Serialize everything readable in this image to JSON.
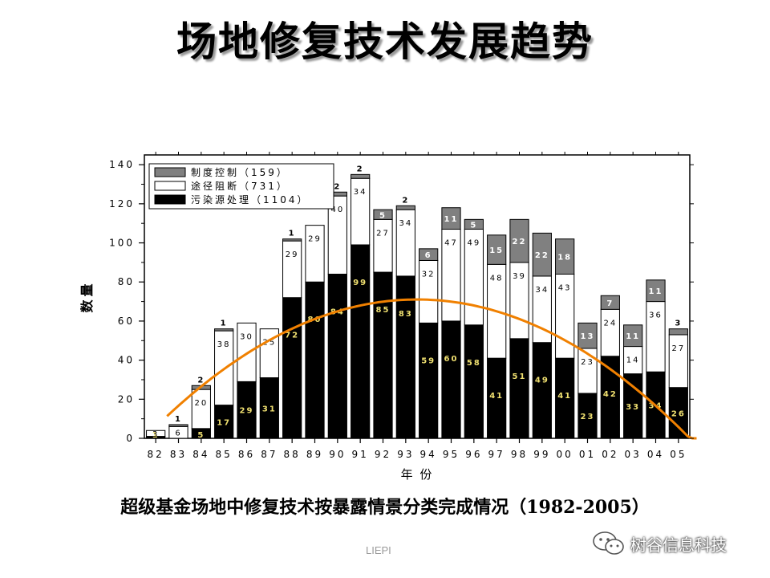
{
  "page": {
    "title": "场地修复技术发展趋势"
  },
  "caption": "超级基金场地中修复技术按暴露情景分类完成情况（1982-2005）",
  "footer_mark": "LIEPI",
  "watermark": {
    "text": "树谷信息科技",
    "icon": "wechat-icon"
  },
  "chart_data": {
    "type": "bar",
    "stacked": true,
    "xlabel": "年 份",
    "ylabel": "数量",
    "ylim": [
      0,
      145
    ],
    "yticks": [
      0,
      20,
      40,
      60,
      80,
      100,
      120,
      140
    ],
    "categories": [
      "82",
      "83",
      "84",
      "85",
      "86",
      "87",
      "88",
      "89",
      "90",
      "91",
      "92",
      "93",
      "94",
      "95",
      "96",
      "97",
      "98",
      "99",
      "00",
      "01",
      "02",
      "03",
      "04",
      "05"
    ],
    "legend_position": "top-left",
    "series": [
      {
        "name": "污染源处理（1104）",
        "color": "#000000",
        "label_color": "#f0e070",
        "values": [
          1,
          0,
          5,
          17,
          29,
          31,
          72,
          80,
          84,
          99,
          85,
          83,
          59,
          60,
          58,
          41,
          51,
          49,
          41,
          23,
          42,
          33,
          34,
          26
        ],
        "labels": [
          "1",
          "",
          "5",
          "17",
          "29",
          "31",
          "72",
          "80",
          "84",
          "99",
          "85",
          "83",
          "59",
          "60",
          "58",
          "41",
          "51",
          "49",
          "41",
          "23",
          "42",
          "33",
          "34",
          "26"
        ]
      },
      {
        "name": "途径阻断（731）",
        "color": "#ffffff",
        "label_color": "#000000",
        "values": [
          3,
          6,
          20,
          38,
          30,
          25,
          29,
          29,
          40,
          34,
          27,
          34,
          32,
          47,
          49,
          48,
          39,
          34,
          43,
          23,
          24,
          14,
          36,
          27
        ],
        "labels": [
          "3",
          "6",
          "20",
          "38",
          "30",
          "25",
          "29",
          "29",
          "40",
          "34",
          "27",
          "34",
          "32",
          "47",
          "49",
          "48",
          "39",
          "34",
          "43",
          "23",
          "24",
          "14",
          "36",
          "27"
        ]
      },
      {
        "name": "制度控制（159）",
        "color": "#808080",
        "label_color": "#ffffff",
        "values": [
          0,
          1,
          2,
          1,
          0,
          0,
          1,
          0,
          2,
          2,
          5,
          2,
          6,
          11,
          5,
          15,
          22,
          22,
          18,
          13,
          7,
          11,
          11,
          3
        ],
        "labels": [
          "",
          "1",
          "2",
          "1",
          "",
          "",
          "1",
          "",
          "2",
          "2",
          "5",
          "2",
          "6",
          "11",
          "5",
          "15",
          "22",
          "22",
          "18",
          "13",
          "7",
          "11",
          "11",
          "3"
        ]
      }
    ],
    "trend_line": {
      "color": "#f08000",
      "x": [
        0,
        11.7,
        24
      ],
      "y": [
        0,
        71,
        0
      ]
    }
  }
}
